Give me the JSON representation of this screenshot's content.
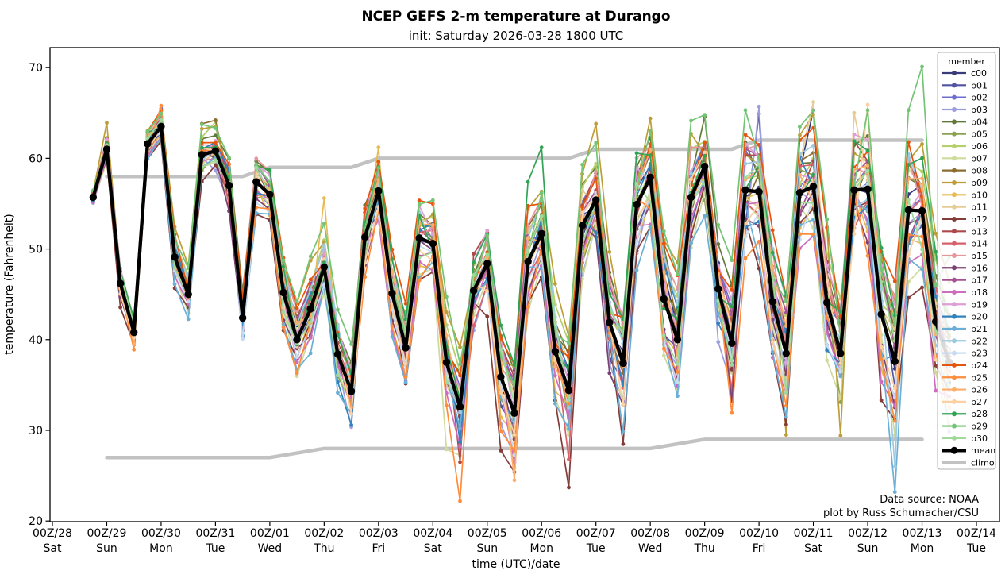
{
  "header": {
    "title": "NCEP GEFS 2-m temperature at Durango",
    "subtitle": "init: Saturday 2026-03-28 1800 UTC"
  },
  "annotations": {
    "source_line1": "Data source: NOAA",
    "source_line2": "plot by Russ Schumacher/CSU"
  },
  "chart_data": {
    "type": "line",
    "title": "NCEP GEFS 2-m temperature at Durango",
    "subtitle": "init: Saturday 2026-03-28 1800 UTC",
    "xlabel": "time (UTC)/date",
    "ylabel": "temperature (Fahrenheit)",
    "ylim": [
      20,
      72
    ],
    "yticks": [
      20,
      30,
      40,
      50,
      60,
      70
    ],
    "grid": false,
    "legend_title": "member",
    "legend_position": "upper right",
    "xticks": [
      {
        "utc": "00Z/28",
        "day": "Sat"
      },
      {
        "utc": "00Z/29",
        "day": "Sun"
      },
      {
        "utc": "00Z/30",
        "day": "Mon"
      },
      {
        "utc": "00Z/31",
        "day": "Tue"
      },
      {
        "utc": "00Z/01",
        "day": "Wed"
      },
      {
        "utc": "00Z/02",
        "day": "Thu"
      },
      {
        "utc": "00Z/03",
        "day": "Fri"
      },
      {
        "utc": "00Z/04",
        "day": "Sat"
      },
      {
        "utc": "00Z/05",
        "day": "Sun"
      },
      {
        "utc": "00Z/06",
        "day": "Mon"
      },
      {
        "utc": "00Z/07",
        "day": "Tue"
      },
      {
        "utc": "00Z/08",
        "day": "Wed"
      },
      {
        "utc": "00Z/09",
        "day": "Thu"
      },
      {
        "utc": "00Z/10",
        "day": "Fri"
      },
      {
        "utc": "00Z/11",
        "day": "Sat"
      },
      {
        "utc": "00Z/12",
        "day": "Sun"
      },
      {
        "utc": "00Z/13",
        "day": "Mon"
      },
      {
        "utc": "00Z/14",
        "day": "Tue"
      }
    ],
    "time_start_days": 0.75,
    "time_step_days": 0.25,
    "mean": {
      "name": "mean",
      "color": "#000000",
      "values": [
        55.7,
        61.0,
        46.2,
        40.8,
        61.6,
        63.5,
        49.1,
        45.0,
        60.4,
        60.8,
        57.0,
        42.4,
        57.4,
        56.0,
        45.2,
        40.0,
        43.4,
        48.0,
        38.4,
        34.3,
        51.3,
        56.4,
        45.1,
        39.1,
        51.2,
        50.6,
        37.5,
        32.6,
        45.4,
        48.4,
        35.9,
        31.9,
        48.6,
        51.7,
        38.7,
        34.4,
        52.6,
        55.4,
        41.9,
        37.4,
        54.9,
        57.9,
        44.5,
        40.0,
        55.7,
        59.1,
        45.6,
        39.6,
        56.5,
        56.3,
        44.2,
        38.5,
        56.2,
        56.9,
        44.1,
        38.5,
        56.5,
        56.6,
        42.8,
        37.6,
        54.3,
        54.2,
        42.0,
        37.5
      ]
    },
    "climo": {
      "name": "climo",
      "color": "#c2c2c2",
      "upper": {
        "t_days": [
          1.0,
          3.5,
          4.0,
          5.5,
          6.0,
          9.5,
          10.0,
          12.5,
          13.0,
          16.0
        ],
        "values": [
          58,
          58,
          59,
          59,
          60,
          60,
          61,
          61,
          62,
          62
        ]
      },
      "lower": {
        "t_days": [
          1.0,
          4.0,
          5.0,
          11.0,
          12.0,
          16.0
        ],
        "values": [
          27,
          27,
          28,
          28,
          29,
          29
        ]
      }
    },
    "ensemble_spread": [
      0.5,
      1.3,
      1.5,
      1.3,
      1.2,
      1.3,
      2.0,
      2.0,
      2.0,
      1.8,
      2.5,
      2.5,
      2.2,
      2.3,
      2.8,
      3.0,
      3.2,
      2.8,
      3.2,
      3.2,
      3.0,
      2.8,
      3.3,
      3.5,
      3.3,
      3.3,
      4.0,
      4.5,
      4.0,
      3.6,
      4.5,
      4.5,
      4.2,
      3.8,
      4.6,
      5.0,
      4.5,
      4.0,
      4.8,
      5.2,
      4.5,
      4.2,
      5.0,
      5.5,
      4.8,
      4.5,
      5.2,
      5.8,
      5.0,
      4.8,
      5.5,
      6.0,
      5.2,
      5.0,
      5.8,
      6.2,
      5.5,
      5.2,
      6.0,
      6.5,
      5.8,
      5.5,
      6.3,
      6.8
    ],
    "wiggle": [
      0.1,
      -0.6,
      0.8,
      -0.2,
      0.5,
      -0.9,
      0.3,
      0.7,
      -0.4,
      0.95,
      -0.1,
      0.6,
      -0.75,
      0.2,
      0.85,
      -0.5,
      0.4,
      -0.95,
      0.15,
      0.65,
      -0.3,
      0.9,
      -0.55,
      0.05,
      0.75,
      -0.85,
      0.35,
      -0.15,
      0.55,
      -0.7,
      0.25,
      0.45,
      -0.35,
      0.8,
      -0.05,
      -0.6,
      0.7,
      -0.25,
      0.5,
      -0.8,
      0.1,
      0.9,
      -0.45,
      0.3,
      -0.65,
      0.6,
      -0.2,
      0.4,
      -0.9,
      0.2,
      0.7,
      -0.5,
      0.85,
      -0.1,
      0.55,
      -0.75,
      0.0,
      0.65,
      -0.4,
      0.95,
      -0.3,
      0.5,
      -0.85,
      0.35
    ],
    "members": [
      {
        "name": "c00",
        "color": "#393b79",
        "bias": 0.1,
        "amp": 0.5,
        "phase": 3
      },
      {
        "name": "p01",
        "color": "#5254a3",
        "bias": -0.3,
        "amp": 0.6,
        "phase": 7
      },
      {
        "name": "p02",
        "color": "#6b6ecf",
        "bias": 0.4,
        "amp": 0.5,
        "phase": 11
      },
      {
        "name": "p03",
        "color": "#9c9ede",
        "bias": -0.6,
        "amp": 0.7,
        "phase": 17
      },
      {
        "name": "p04",
        "color": "#637939",
        "bias": 0.7,
        "amp": 0.5,
        "phase": 23
      },
      {
        "name": "p05",
        "color": "#8ca252",
        "bias": -0.15,
        "amp": 0.8,
        "phase": 29
      },
      {
        "name": "p06",
        "color": "#b5cf6b",
        "bias": 0.55,
        "amp": 0.6,
        "phase": 31
      },
      {
        "name": "p07",
        "color": "#cedb9c",
        "bias": -0.8,
        "amp": 0.6,
        "phase": 37
      },
      {
        "name": "p08",
        "color": "#8c6d31",
        "bias": 0.25,
        "amp": 0.7,
        "phase": 41
      },
      {
        "name": "p09",
        "color": "#bd9e39",
        "bias": 0.9,
        "amp": 0.8,
        "phase": 43
      },
      {
        "name": "p10",
        "color": "#e7ba52",
        "bias": -0.45,
        "amp": 0.6,
        "phase": 47
      },
      {
        "name": "p11",
        "color": "#e7cb94",
        "bias": 0.05,
        "amp": 0.9,
        "phase": 53
      },
      {
        "name": "p12",
        "color": "#843c39",
        "bias": -0.95,
        "amp": 0.9,
        "phase": 59
      },
      {
        "name": "p13",
        "color": "#ad494a",
        "bias": 0.35,
        "amp": 0.7,
        "phase": 61
      },
      {
        "name": "p14",
        "color": "#d6616b",
        "bias": -0.2,
        "amp": 0.8,
        "phase": 5
      },
      {
        "name": "p15",
        "color": "#e7969c",
        "bias": 0.6,
        "amp": 0.6,
        "phase": 13
      },
      {
        "name": "p16",
        "color": "#7b4173",
        "bias": -0.5,
        "amp": 0.7,
        "phase": 19
      },
      {
        "name": "p17",
        "color": "#a55194",
        "bias": 0.15,
        "amp": 0.8,
        "phase": 25
      },
      {
        "name": "p18",
        "color": "#ce6dbd",
        "bias": -0.7,
        "amp": 0.6,
        "phase": 35
      },
      {
        "name": "p19",
        "color": "#de9ed6",
        "bias": 0.45,
        "amp": 0.7,
        "phase": 49
      },
      {
        "name": "p20",
        "color": "#3182bd",
        "bias": -0.1,
        "amp": 0.9,
        "phase": 55
      },
      {
        "name": "p21",
        "color": "#6baed6",
        "bias": -0.85,
        "amp": 0.8,
        "phase": 9
      },
      {
        "name": "p22",
        "color": "#9ecae1",
        "bias": 0.3,
        "amp": 0.8,
        "phase": 15
      },
      {
        "name": "p23",
        "color": "#c6dbef",
        "bias": -0.4,
        "amp": 0.7,
        "phase": 21
      },
      {
        "name": "p24",
        "color": "#e6550d",
        "bias": 0.8,
        "amp": 0.7,
        "phase": 27
      },
      {
        "name": "p25",
        "color": "#fd8d3c",
        "bias": -0.65,
        "amp": 0.9,
        "phase": 33
      },
      {
        "name": "p26",
        "color": "#fdae6b",
        "bias": 0.2,
        "amp": 0.6,
        "phase": 39
      },
      {
        "name": "p27",
        "color": "#fdd0a2",
        "bias": -0.25,
        "amp": 0.7,
        "phase": 45
      },
      {
        "name": "p28",
        "color": "#31a354",
        "bias": 0.5,
        "amp": 0.8,
        "phase": 51
      },
      {
        "name": "p29",
        "color": "#74c476",
        "bias": 0.95,
        "amp": 0.9,
        "phase": 57
      },
      {
        "name": "p30",
        "color": "#a1d99b",
        "bias": -0.05,
        "amp": 0.8,
        "phase": 63
      }
    ],
    "member_overrides": [
      {
        "member": "p09",
        "i": 1,
        "v": 63.9
      },
      {
        "member": "p26",
        "i": 3,
        "v": 39.5
      },
      {
        "member": "p02",
        "i": 5,
        "v": 65.5
      },
      {
        "member": "p25",
        "i": 5,
        "v": 65.8
      },
      {
        "member": "p08",
        "i": 8,
        "v": 63.8
      },
      {
        "member": "p08",
        "i": 9,
        "v": 64.2
      },
      {
        "member": "p06",
        "i": 9,
        "v": 64.0
      },
      {
        "member": "p10",
        "i": 17,
        "v": 55.6
      },
      {
        "member": "p20",
        "i": 19,
        "v": 30.6
      },
      {
        "member": "p10",
        "i": 21,
        "v": 61.2
      },
      {
        "member": "p07",
        "i": 26,
        "v": 27.9
      },
      {
        "member": "p25",
        "i": 27,
        "v": 22.2
      },
      {
        "member": "p13",
        "i": 27,
        "v": 26.5
      },
      {
        "member": "p26",
        "i": 31,
        "v": 24.5
      },
      {
        "member": "p06",
        "i": 31,
        "v": 25.9
      },
      {
        "member": "p28",
        "i": 32,
        "v": 57.4
      },
      {
        "member": "p28",
        "i": 33,
        "v": 61.2
      },
      {
        "member": "p12",
        "i": 35,
        "v": 23.7
      },
      {
        "member": "p14",
        "i": 35,
        "v": 26.8
      },
      {
        "member": "p09",
        "i": 37,
        "v": 63.8
      },
      {
        "member": "p09",
        "i": 41,
        "v": 64.4
      },
      {
        "member": "p04",
        "i": 45,
        "v": 64.6
      },
      {
        "member": "p03",
        "i": 49,
        "v": 65.7
      },
      {
        "member": "p01",
        "i": 49,
        "v": 64.9
      },
      {
        "member": "p09",
        "i": 51,
        "v": 29.5
      },
      {
        "member": "p11",
        "i": 53,
        "v": 66.2
      },
      {
        "member": "c00",
        "i": 53,
        "v": 65.3
      },
      {
        "member": "p09",
        "i": 53,
        "v": 64.8
      },
      {
        "member": "p09",
        "i": 55,
        "v": 29.4
      },
      {
        "member": "p11",
        "i": 56,
        "v": 65.0
      },
      {
        "member": "p27",
        "i": 57,
        "v": 65.9
      },
      {
        "member": "p29",
        "i": 57,
        "v": 65.3
      },
      {
        "member": "p21",
        "i": 59,
        "v": 23.2
      },
      {
        "member": "p22",
        "i": 59,
        "v": 26.0
      },
      {
        "member": "p29",
        "i": 60,
        "v": 65.3
      },
      {
        "member": "p29",
        "i": 61,
        "v": 70.1
      },
      {
        "member": "p29",
        "i": 62,
        "v": 46.0
      }
    ]
  }
}
